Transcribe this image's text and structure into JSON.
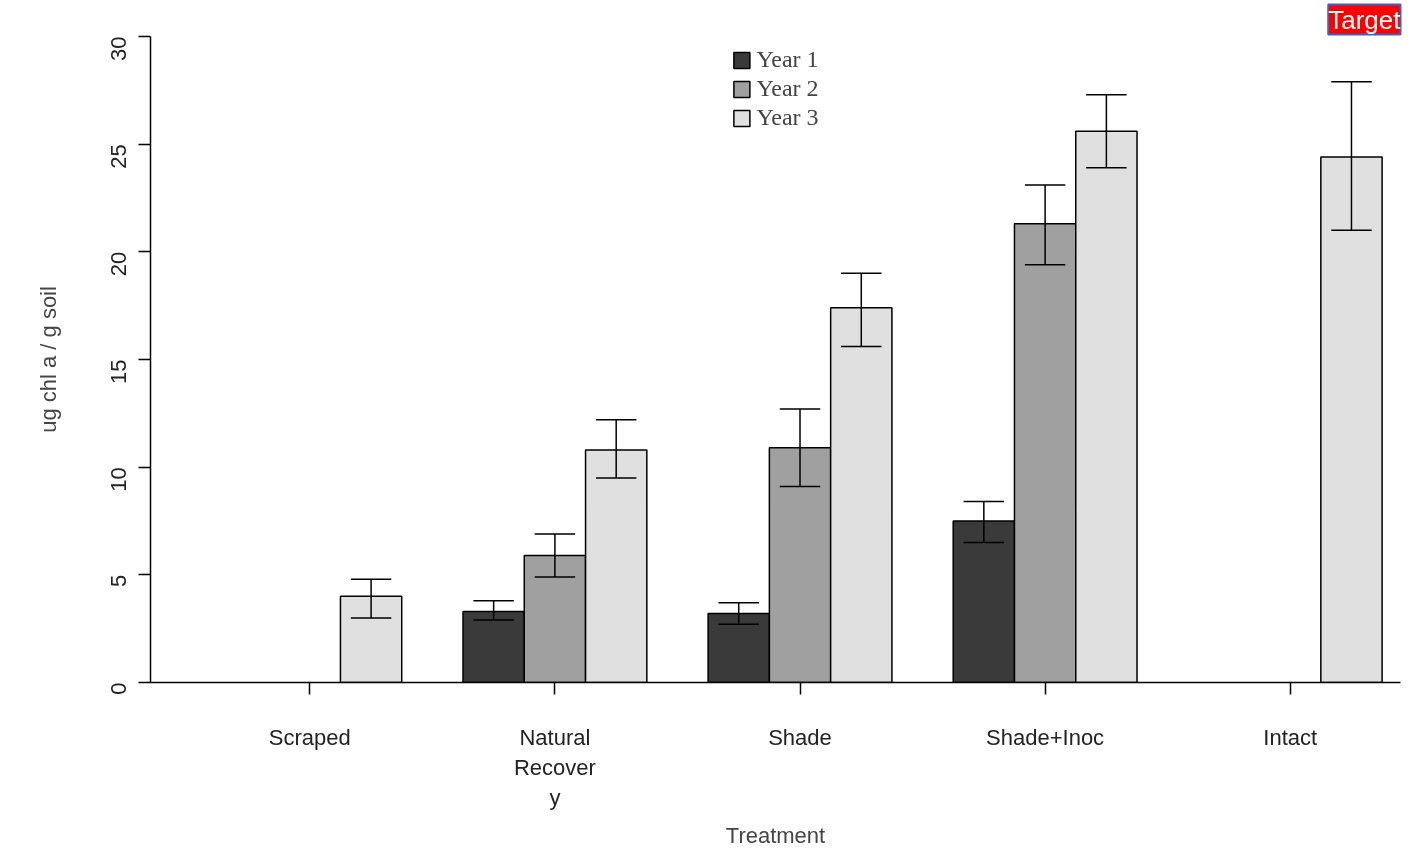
{
  "chart_data": {
    "type": "bar",
    "xlabel": "Treatment",
    "ylabel": "ug chl a / g soil",
    "categories": [
      "Scraped",
      "Natural\nRecover\ny",
      "Shade",
      "Shade+Inoc",
      "Intact"
    ],
    "series": [
      {
        "name": "Year 1",
        "color": "#3a3a3a",
        "values": [
          null,
          3.3,
          3.2,
          7.5,
          null
        ],
        "errors": [
          null,
          [
            2.9,
            3.8
          ],
          [
            2.7,
            3.7
          ],
          [
            6.5,
            8.4
          ],
          null
        ]
      },
      {
        "name": "Year 2",
        "color": "#a0a0a0",
        "values": [
          null,
          5.9,
          10.9,
          21.3,
          null
        ],
        "errors": [
          null,
          [
            4.9,
            6.9
          ],
          [
            9.1,
            12.7
          ],
          [
            19.4,
            23.1
          ],
          null
        ]
      },
      {
        "name": "Year 3",
        "color": "#e0e0e0",
        "values": [
          4.0,
          10.8,
          17.4,
          25.6,
          24.4
        ],
        "errors": [
          [
            3.0,
            4.8
          ],
          [
            9.5,
            12.2
          ],
          [
            15.6,
            19.0
          ],
          [
            23.9,
            27.3
          ],
          [
            21.0,
            27.9
          ]
        ]
      }
    ],
    "ylim": [
      0,
      30
    ],
    "yticks": [
      0,
      5,
      10,
      15,
      20,
      25,
      30
    ],
    "legend": "top",
    "grid": false,
    "annotations": [
      "Target"
    ]
  }
}
